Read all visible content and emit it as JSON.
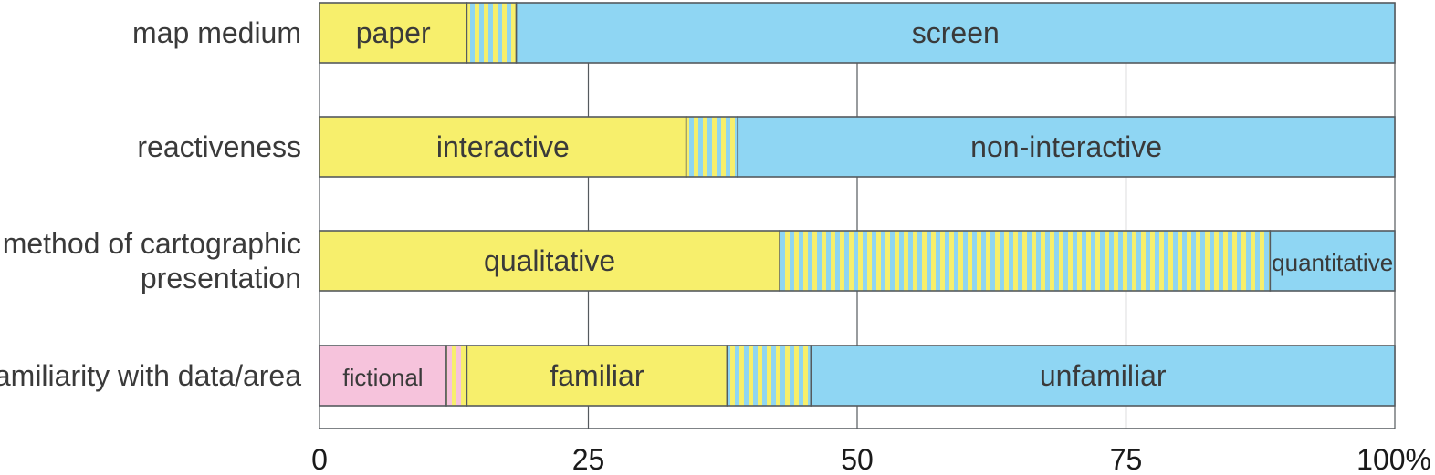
{
  "chart_data": {
    "type": "bar",
    "orientation": "horizontal",
    "stacked": true,
    "xlim": [
      0,
      100
    ],
    "x_ticks": [
      {
        "value": 0,
        "label": "0"
      },
      {
        "value": 25,
        "label": "25"
      },
      {
        "value": 50,
        "label": "50"
      },
      {
        "value": 75,
        "label": "75"
      },
      {
        "value": 100,
        "label": "100%"
      }
    ],
    "grid": true,
    "colors": {
      "yellow": "#f7ef6c",
      "blue": "#8fd6f3",
      "pink": "#f6c3dc",
      "outline": "#555a5e",
      "grid": "#555a5e"
    },
    "bars": [
      {
        "label": [
          "map medium"
        ],
        "segments": [
          {
            "value": 13.7,
            "fill": "yellow",
            "text": "paper"
          },
          {
            "value": 4.6,
            "fill": "striped-yellow-blue",
            "text": ""
          },
          {
            "value": 81.7,
            "fill": "blue",
            "text": "screen"
          }
        ]
      },
      {
        "label": [
          "reactiveness"
        ],
        "segments": [
          {
            "value": 34.1,
            "fill": "yellow",
            "text": "interactive"
          },
          {
            "value": 4.8,
            "fill": "striped-yellow-blue",
            "text": ""
          },
          {
            "value": 61.1,
            "fill": "blue",
            "text": "non-interactive"
          }
        ]
      },
      {
        "label": [
          "method of cartographic",
          "presentation"
        ],
        "segments": [
          {
            "value": 42.8,
            "fill": "yellow",
            "text": "qualitative"
          },
          {
            "value": 45.6,
            "fill": "striped-yellow-blue",
            "text": ""
          },
          {
            "value": 11.6,
            "fill": "blue",
            "text": "quantitative"
          }
        ]
      },
      {
        "label": [
          "familiarity with data/area"
        ],
        "segments": [
          {
            "value": 11.8,
            "fill": "pink",
            "text": "fictional"
          },
          {
            "value": 1.9,
            "fill": "striped-pink-yellow",
            "text": ""
          },
          {
            "value": 24.2,
            "fill": "yellow",
            "text": "familiar"
          },
          {
            "value": 7.8,
            "fill": "striped-yellow-blue",
            "text": ""
          },
          {
            "value": 54.3,
            "fill": "blue",
            "text": "unfamiliar"
          }
        ]
      }
    ]
  }
}
